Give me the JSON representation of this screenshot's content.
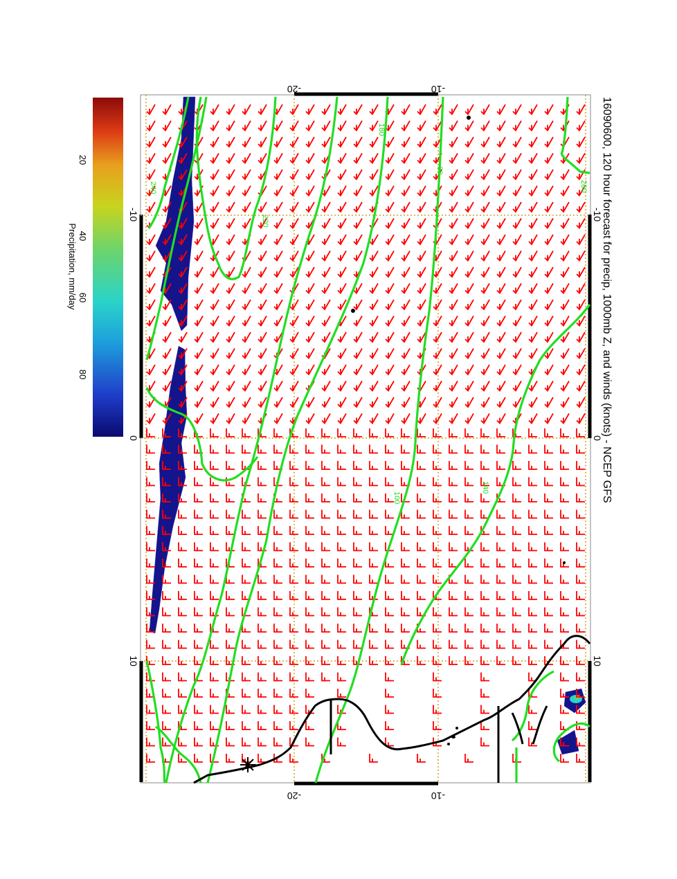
{
  "title": "16090600, 120 hour forecast for precip, 1000mb Z, and winds (knots) - NCEP GFS",
  "longitude_ticks": [
    "-10",
    "0",
    "10"
  ],
  "latitude_ticks": [
    "-20",
    "-10"
  ],
  "colorbar": {
    "label": "Precipitation, mm/day",
    "ticks": [
      "20",
      "40",
      "60",
      "80"
    ],
    "colors": [
      "#0a0a6e",
      "#1e3cc8",
      "#1ea0dc",
      "#2ad4c8",
      "#6cd46c",
      "#c8d41e",
      "#e8a01e",
      "#dc3c14",
      "#8c0a0a"
    ]
  },
  "contours": {
    "color": "#22dd22",
    "labels": [
      "60",
      "100",
      "140",
      "180",
      "220",
      "240",
      "260"
    ]
  },
  "wind_barbs": {
    "color": "#ff0000"
  },
  "precip_fill_color": "#14148c",
  "coast_color": "#000000",
  "grid_color": "#d4a017"
}
